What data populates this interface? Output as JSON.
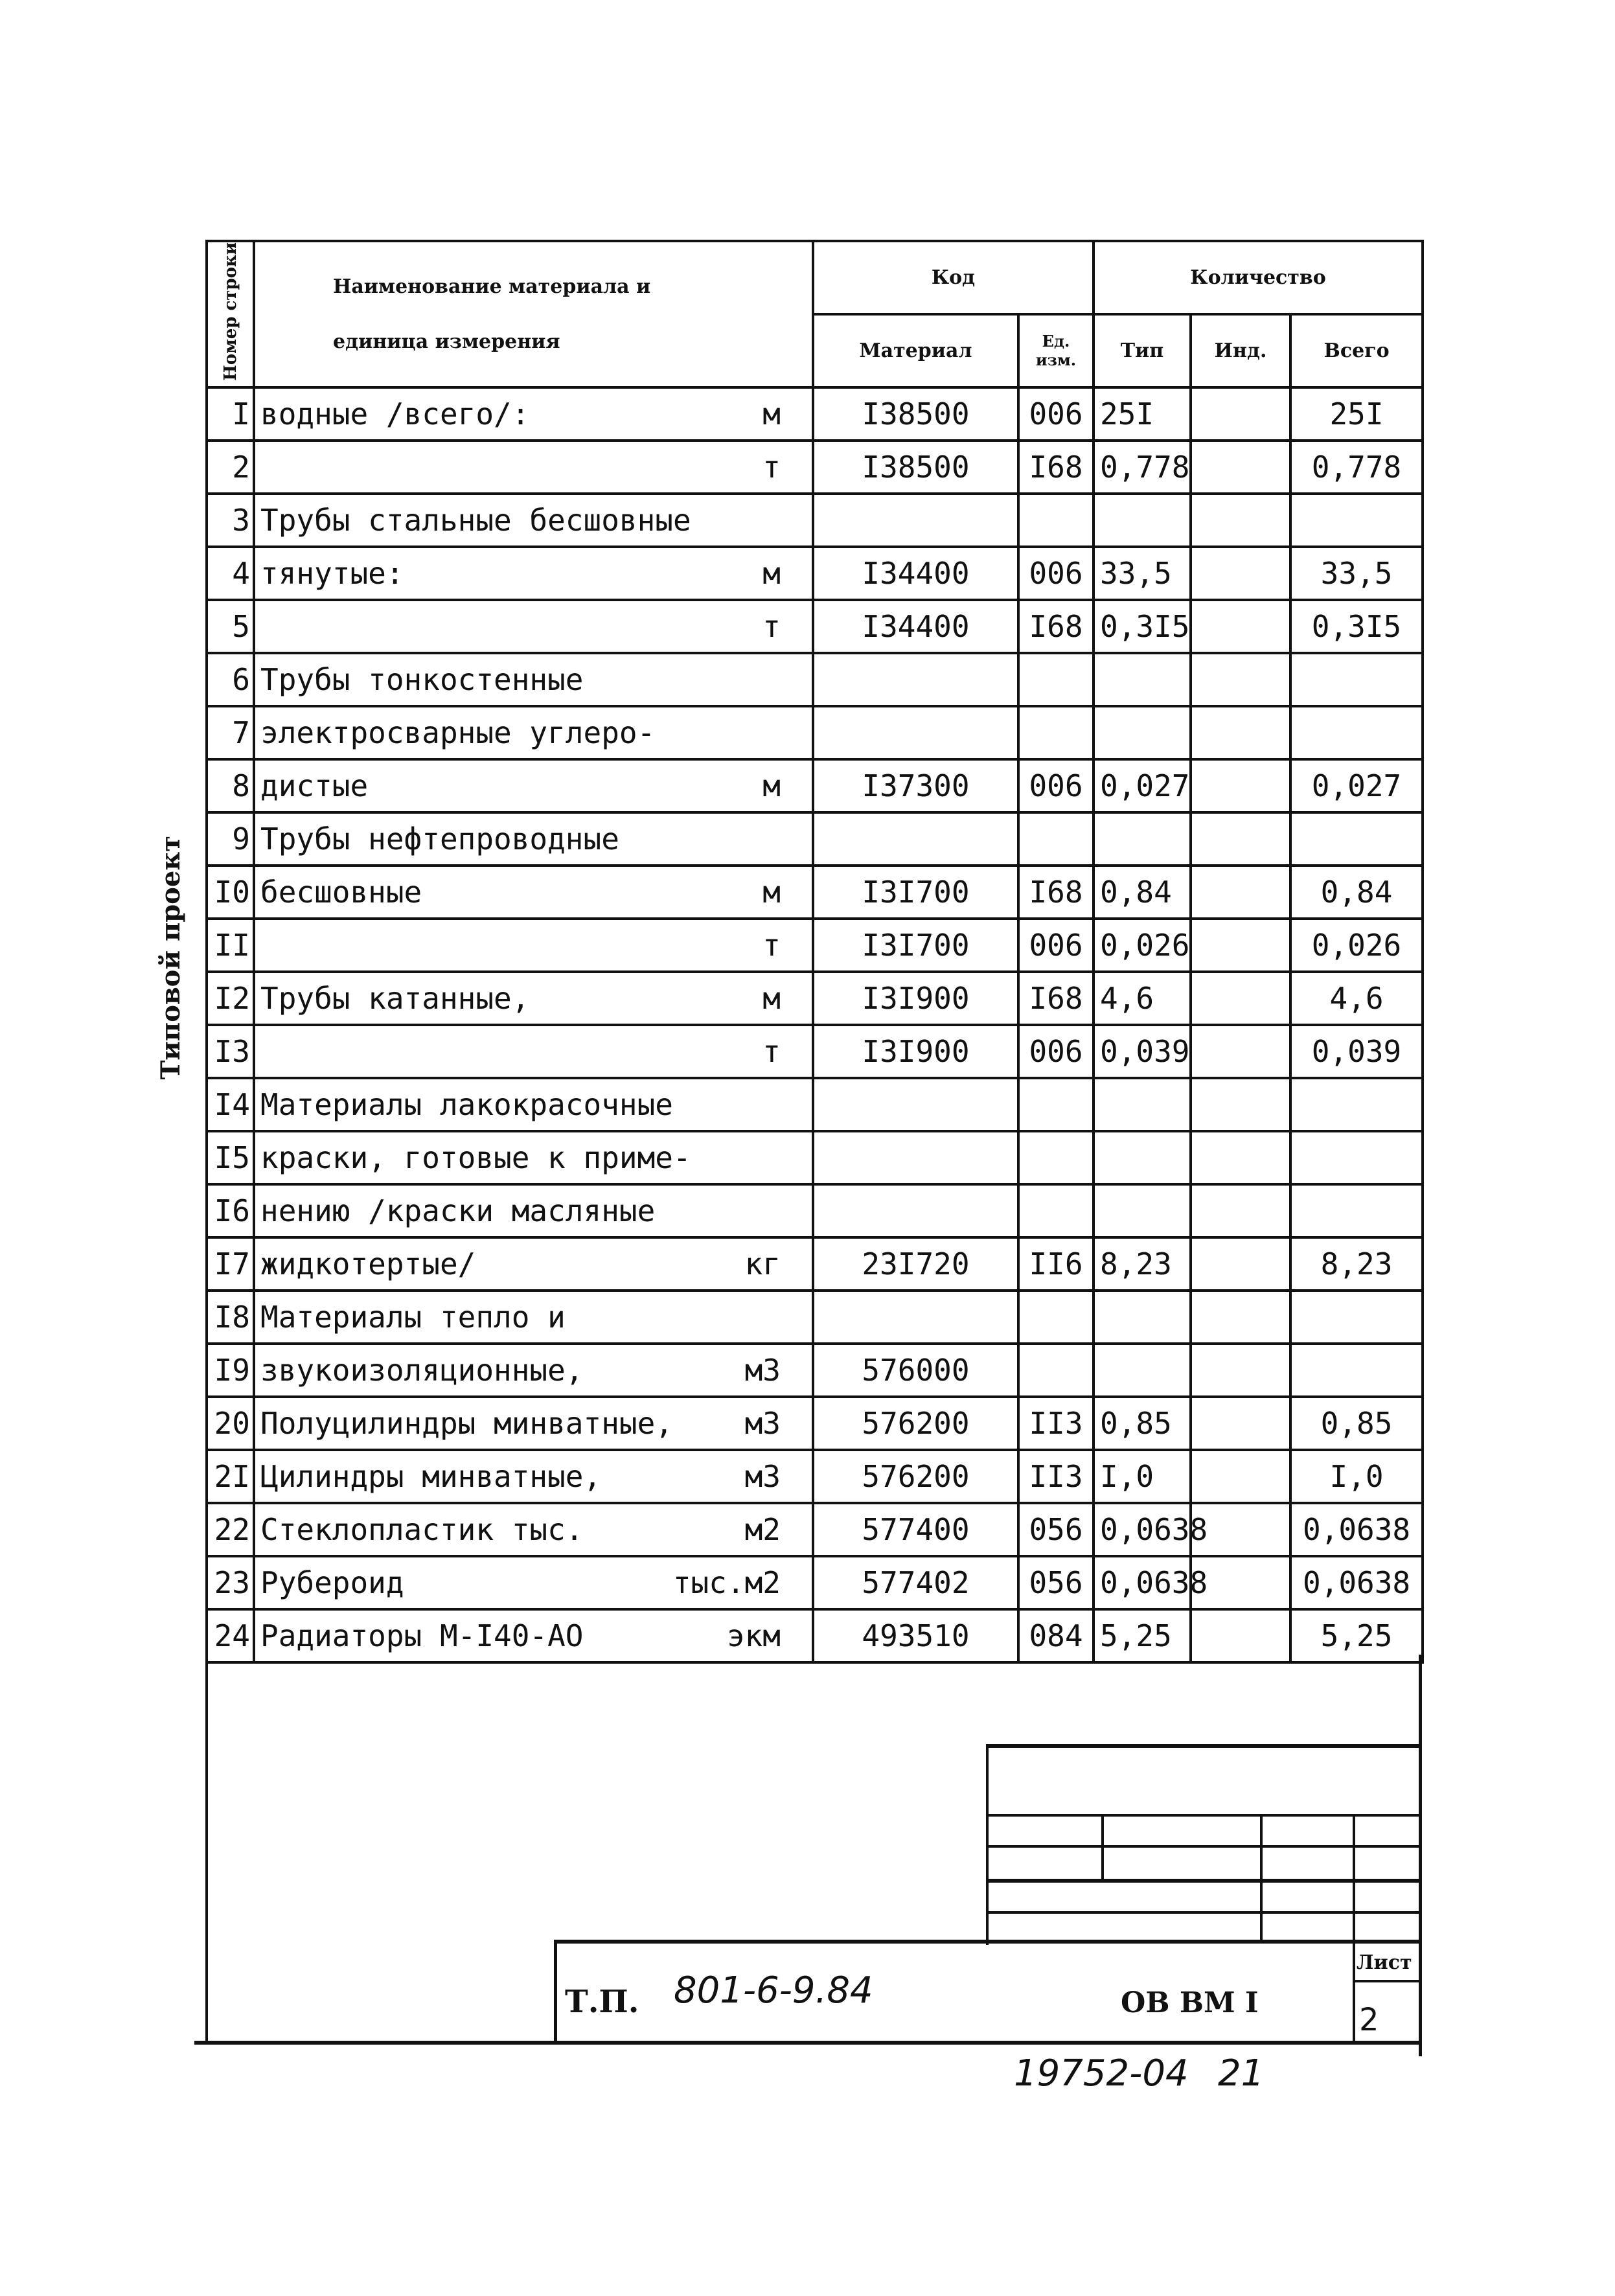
{
  "side_text": "Типовой проект",
  "header": {
    "row_no": "Номер строки",
    "name_line1": "Наименование материала и",
    "name_line2": "единица измерения",
    "code": "Код",
    "quantity": "Количество",
    "material": "Материал",
    "unit": "Ед. изм.",
    "typ": "Тип",
    "ind": "Инд.",
    "total": "Всего"
  },
  "rows": [
    {
      "n": "I",
      "name": "водные /всего/:",
      "u": "м",
      "mat": "I38500",
      "ed": "006",
      "tip": "25I",
      "ind": "",
      "all": "25I"
    },
    {
      "n": "2",
      "name": "",
      "u": "т",
      "mat": "I38500",
      "ed": "I68",
      "tip": "0,778",
      "ind": "",
      "all": "0,778"
    },
    {
      "n": "3",
      "name": "Трубы стальные бесшовные",
      "u": "",
      "mat": "",
      "ed": "",
      "tip": "",
      "ind": "",
      "all": ""
    },
    {
      "n": "4",
      "name": "тянутые:",
      "u": "м",
      "mat": "I34400",
      "ed": "006",
      "tip": "33,5",
      "ind": "",
      "all": "33,5"
    },
    {
      "n": "5",
      "name": "",
      "u": "т",
      "mat": "I34400",
      "ed": "I68",
      "tip": "0,3I5",
      "ind": "",
      "all": "0,3I5"
    },
    {
      "n": "6",
      "name": "Трубы тонкостенные",
      "u": "",
      "mat": "",
      "ed": "",
      "tip": "",
      "ind": "",
      "all": ""
    },
    {
      "n": "7",
      "name": "электросварные углеро-",
      "u": "",
      "mat": "",
      "ed": "",
      "tip": "",
      "ind": "",
      "all": ""
    },
    {
      "n": "8",
      "name": "дистые",
      "u": "м",
      "mat": "I37300",
      "ed": "006",
      "tip": "0,027",
      "ind": "",
      "all": "0,027"
    },
    {
      "n": "9",
      "name": "Трубы нефтепроводные",
      "u": "",
      "mat": "",
      "ed": "",
      "tip": "",
      "ind": "",
      "all": ""
    },
    {
      "n": "I0",
      "name": "бесшовные",
      "u": "м",
      "mat": "I3I700",
      "ed": "I68",
      "tip": "0,84",
      "ind": "",
      "all": "0,84"
    },
    {
      "n": "II",
      "name": "",
      "u": "т",
      "mat": "I3I700",
      "ed": "006",
      "tip": "0,026",
      "ind": "",
      "all": "0,026"
    },
    {
      "n": "I2",
      "name": "Трубы катанные,",
      "u": "м",
      "mat": "I3I900",
      "ed": "I68",
      "tip": "4,6",
      "ind": "",
      "all": "4,6"
    },
    {
      "n": "I3",
      "name": "",
      "u": "т",
      "mat": "I3I900",
      "ed": "006",
      "tip": "0,039",
      "ind": "",
      "all": "0,039"
    },
    {
      "n": "I4",
      "name": "Материалы лакокрасочные",
      "u": "",
      "mat": "",
      "ed": "",
      "tip": "",
      "ind": "",
      "all": ""
    },
    {
      "n": "I5",
      "name": "краски, готовые к приме-",
      "u": "",
      "mat": "",
      "ed": "",
      "tip": "",
      "ind": "",
      "all": ""
    },
    {
      "n": "I6",
      "name": "нению /краски масляные",
      "u": "",
      "mat": "",
      "ed": "",
      "tip": "",
      "ind": "",
      "all": ""
    },
    {
      "n": "I7",
      "name": "жидкотертые/",
      "u": "кг",
      "mat": "23I720",
      "ed": "II6",
      "tip": "8,23",
      "ind": "",
      "all": "8,23"
    },
    {
      "n": "I8",
      "name": "Материалы тепло и",
      "u": "",
      "mat": "",
      "ed": "",
      "tip": "",
      "ind": "",
      "all": ""
    },
    {
      "n": "I9",
      "name": "звукоизоляционные,",
      "u": "м3",
      "mat": "576000",
      "ed": "",
      "tip": "",
      "ind": "",
      "all": ""
    },
    {
      "n": "20",
      "name": "Полуцилиндры минватные,",
      "u": "м3",
      "mat": "576200",
      "ed": "II3",
      "tip": "0,85",
      "ind": "",
      "all": "0,85"
    },
    {
      "n": "2I",
      "name": "Цилиндры минватные,",
      "u": "м3",
      "mat": "576200",
      "ed": "II3",
      "tip": "I,0",
      "ind": "",
      "all": "I,0"
    },
    {
      "n": "22",
      "name": "Стеклопластик тыс.",
      "u": "м2",
      "mat": "577400",
      "ed": "056",
      "tip": "0,0638",
      "ind": "",
      "all": "0,0638"
    },
    {
      "n": "23",
      "name": "Рубероид",
      "u": "тыс.м2",
      "mat": "577402",
      "ed": "056",
      "tip": "0,0638",
      "ind": "",
      "all": "0,0638"
    },
    {
      "n": "24",
      "name": "Радиаторы М-I40-АО",
      "u": "экм",
      "mat": "493510",
      "ed": "084",
      "tip": "5,25",
      "ind": "",
      "all": "5,25"
    }
  ],
  "title_block": {
    "tp": "Т.П.",
    "project": "801-6-9.84",
    "code": "ОВ ВМ I",
    "sheet_label": "Лист",
    "sheet": "2"
  },
  "footer": {
    "inventory": "19752-04",
    "page": "21"
  }
}
